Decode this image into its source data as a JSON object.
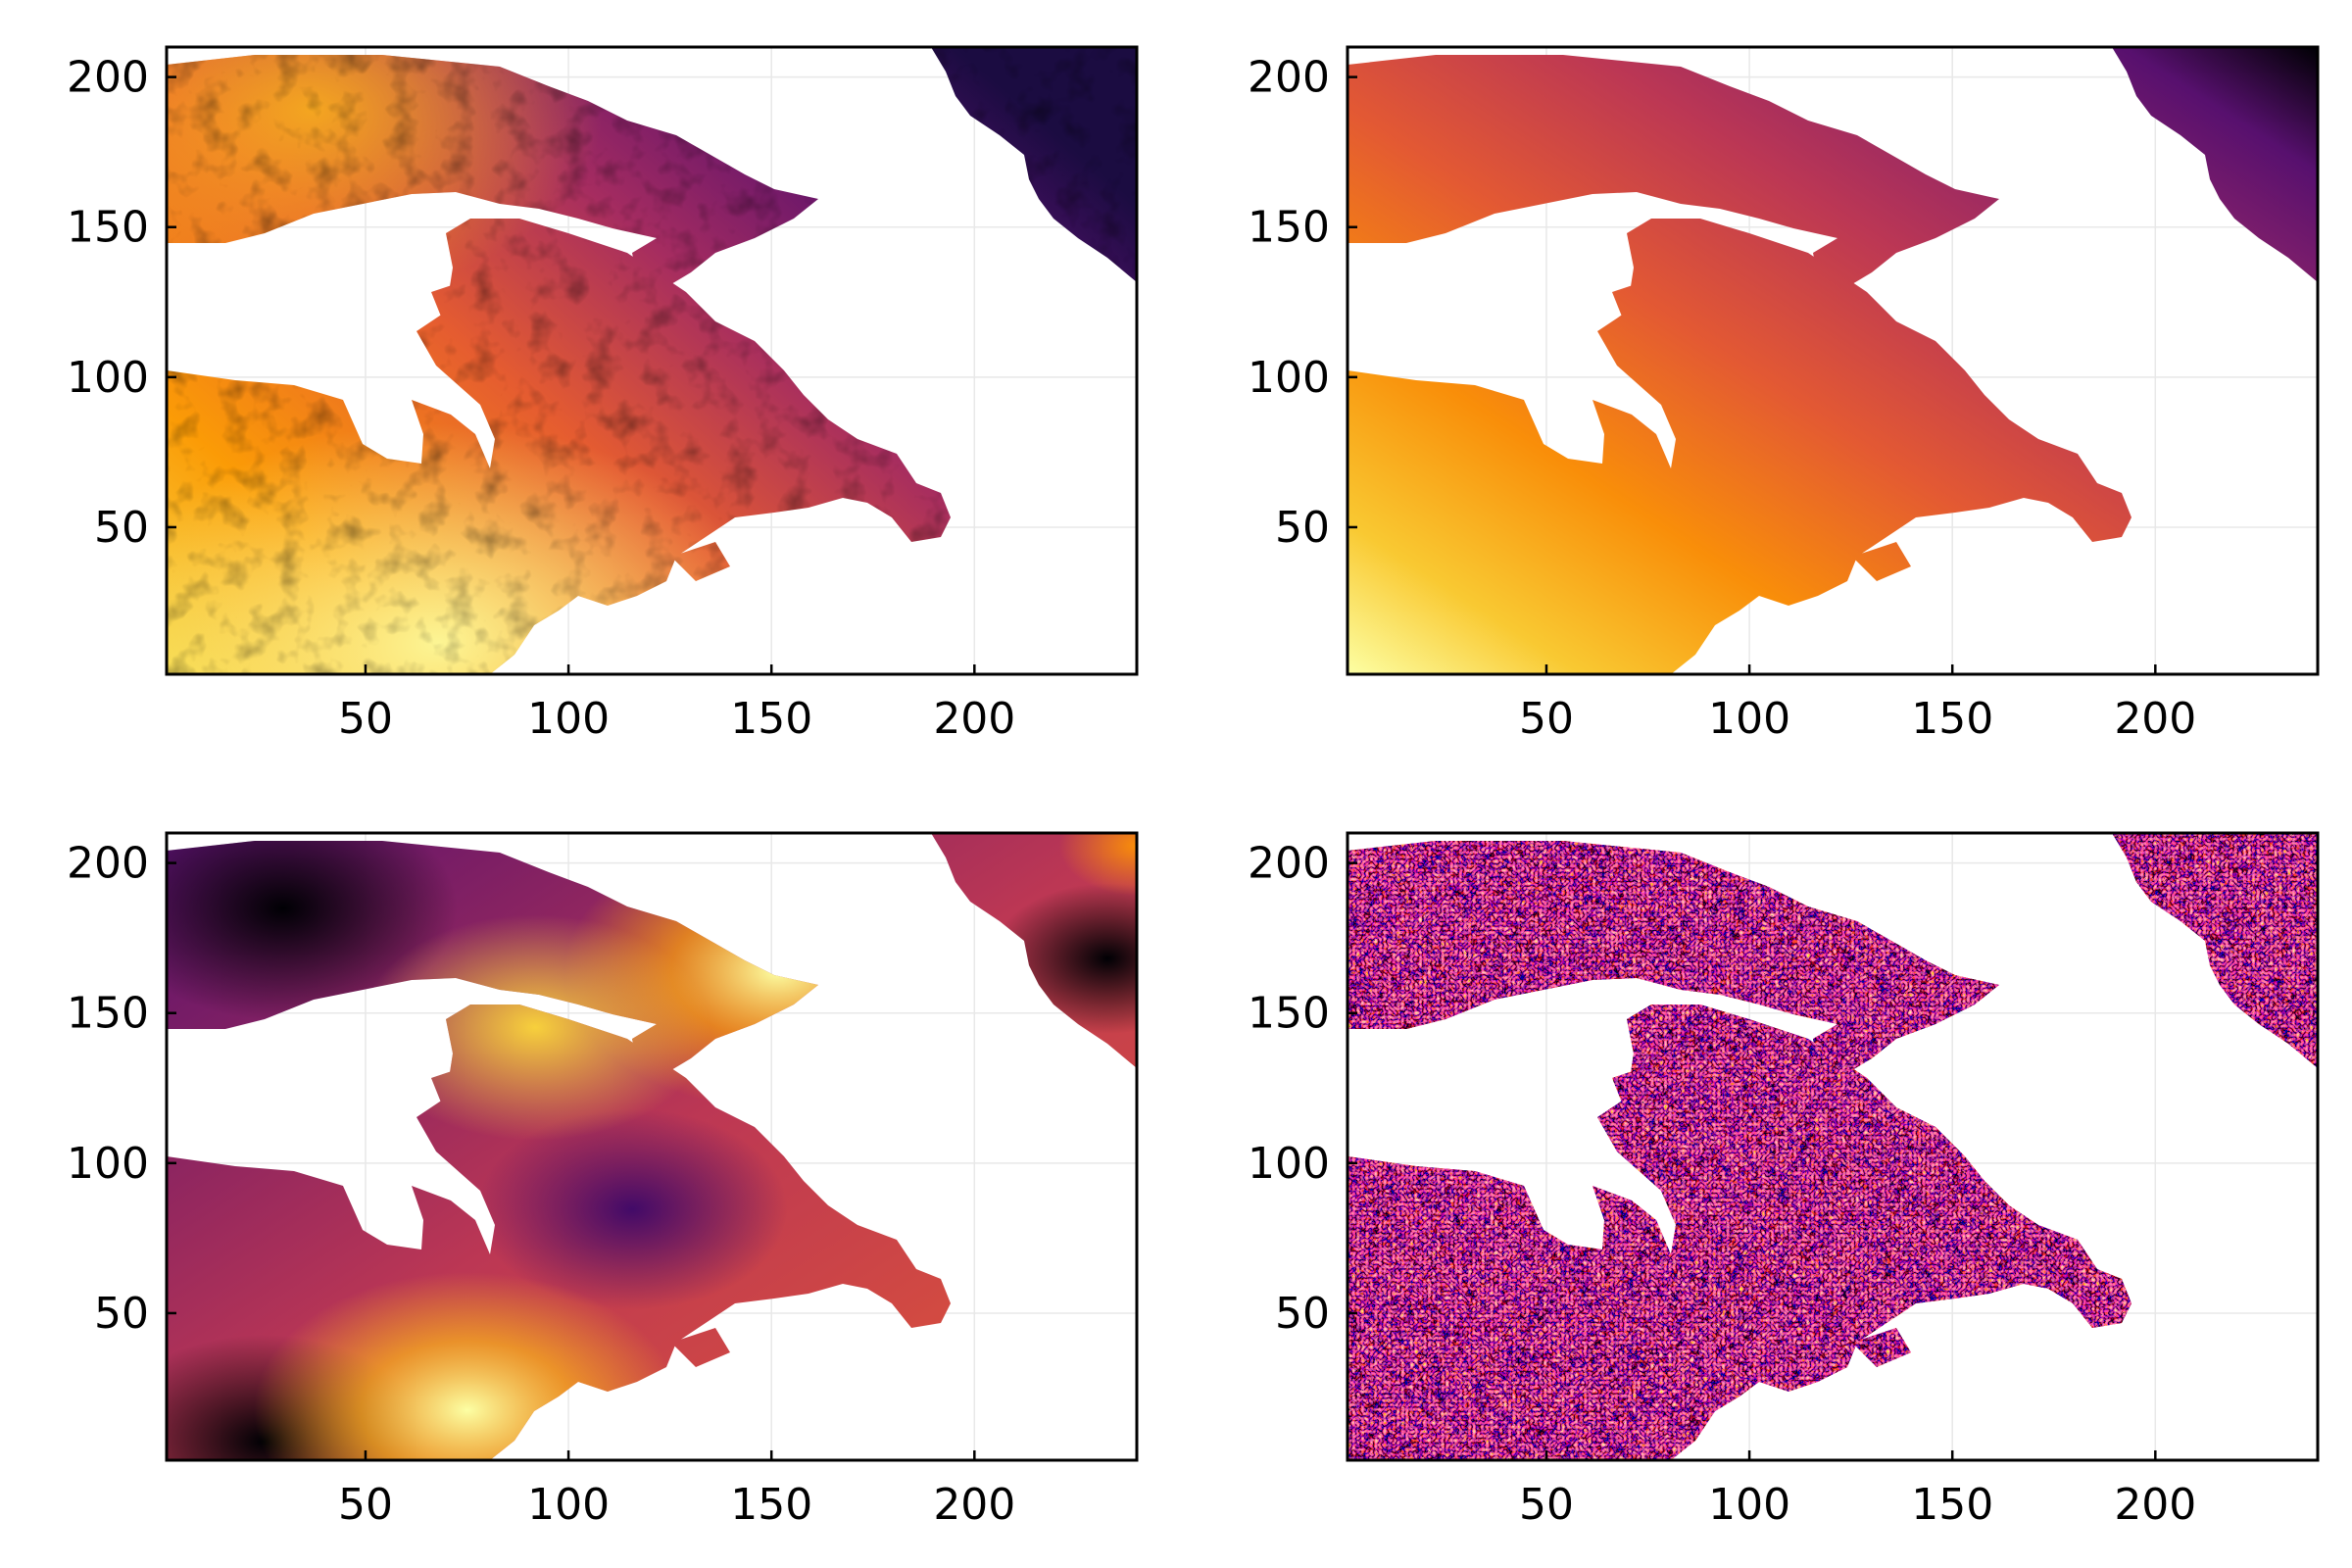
{
  "figure": {
    "layout": "2x2 grid"
  },
  "chart_data": [
    {
      "type": "heatmap",
      "panel": "top-left",
      "pattern": "noisy-gradient",
      "colormap": "inferno",
      "title": "",
      "xlabel": "",
      "ylabel": "",
      "x_ticks": [
        50,
        100,
        150,
        200
      ],
      "y_ticks": [
        50,
        100,
        150,
        200
      ],
      "xlim": [
        1,
        240
      ],
      "ylim": [
        1,
        210
      ],
      "grid": true,
      "legend": "none",
      "note": "masked land region; white areas are missing values"
    },
    {
      "type": "heatmap",
      "panel": "top-right",
      "pattern": "smooth-linear-gradient",
      "colormap": "inferno",
      "title": "",
      "xlabel": "",
      "ylabel": "",
      "x_ticks": [
        50,
        100,
        150,
        200
      ],
      "y_ticks": [
        50,
        100,
        150,
        200
      ],
      "xlim": [
        1,
        240
      ],
      "ylim": [
        1,
        210
      ],
      "grid": true,
      "legend": "none"
    },
    {
      "type": "heatmap",
      "panel": "bottom-left",
      "pattern": "smooth-blobs",
      "colormap": "inferno",
      "title": "",
      "xlabel": "",
      "ylabel": "",
      "x_ticks": [
        50,
        100,
        150,
        200
      ],
      "y_ticks": [
        50,
        100,
        150,
        200
      ],
      "xlim": [
        1,
        240
      ],
      "ylim": [
        1,
        210
      ],
      "grid": true,
      "legend": "none"
    },
    {
      "type": "heatmap",
      "panel": "bottom-right",
      "pattern": "random-noise",
      "colormap": "inferno",
      "title": "",
      "xlabel": "",
      "ylabel": "",
      "x_ticks": [
        50,
        100,
        150,
        200
      ],
      "y_ticks": [
        50,
        100,
        150,
        200
      ],
      "xlim": [
        1,
        240
      ],
      "ylim": [
        1,
        210
      ],
      "grid": true,
      "legend": "none"
    }
  ]
}
